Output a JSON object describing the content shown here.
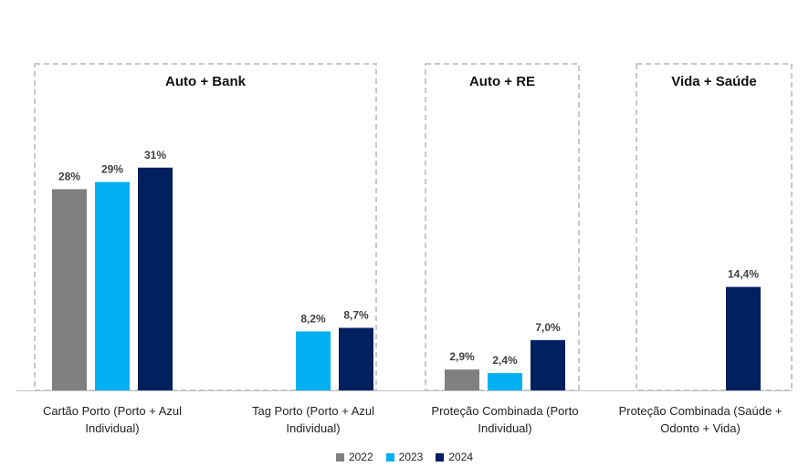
{
  "chart_data": {
    "type": "bar",
    "groups": [
      {
        "label": "Auto + Bank",
        "categories": [
          "Cartão Porto (Porto + Azul Individual)",
          "Tag Porto (Porto + Azul Individual)"
        ]
      },
      {
        "label": "Auto + RE",
        "categories": [
          "Proteção Combinada (Porto Individual)"
        ]
      },
      {
        "label": "Vida + Saúde",
        "categories": [
          "Proteção Combinada (Saúde + Odonto + Vida)"
        ]
      }
    ],
    "categories": [
      [
        "Cartão Porto (Porto + Azul",
        "Individual)"
      ],
      [
        "Tag Porto (Porto + Azul",
        "Individual)"
      ],
      [
        "Proteção Combinada (Porto",
        "Individual)"
      ],
      [
        "Proteção Combinada (Saúde +",
        "Odonto + Vida)"
      ]
    ],
    "series": [
      {
        "name": "2022",
        "color": "#808080",
        "values": [
          28,
          null,
          2.9,
          null
        ],
        "labels": [
          "28%",
          "",
          "2,9%",
          ""
        ]
      },
      {
        "name": "2023",
        "color": "#00B0F0",
        "values": [
          29,
          8.2,
          2.4,
          null
        ],
        "labels": [
          "29%",
          "8,2%",
          "2,4%",
          ""
        ]
      },
      {
        "name": "2024",
        "color": "#002060",
        "values": [
          31,
          8.7,
          7.0,
          14.4
        ],
        "labels": [
          "31%",
          "8,7%",
          "7,0%",
          "14,4%"
        ]
      }
    ],
    "ylim": [
      0,
      33
    ],
    "legend_position": "bottom",
    "grid": false
  }
}
